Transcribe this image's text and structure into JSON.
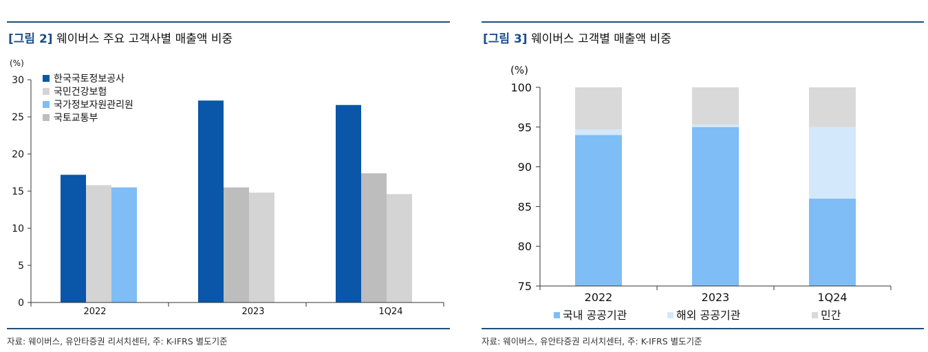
{
  "left": {
    "fig_label": "[그림 2]",
    "title": "웨이버스 주요 고객사별 매출액 비중",
    "source": "자료: 웨이버스, 유안타증권 리서치센터, 주: K-IFRS 별도기준",
    "chart_data": {
      "type": "bar",
      "title": "웨이버스 주요 고객사별 매출액 비중",
      "unit": "(%)",
      "categories": [
        "2022",
        "2023",
        "1Q24"
      ],
      "series": [
        {
          "name": "한국국토정보공사",
          "color": "#0a56a8",
          "values": [
            17.2,
            27.2,
            26.6
          ]
        },
        {
          "name": "국민건강보험",
          "color": "#d4d4d4",
          "values": [
            15.8,
            null,
            null
          ]
        },
        {
          "name": "국가정보자원관리원",
          "color": "#7ebdf5",
          "values": [
            15.5,
            null,
            null
          ]
        },
        {
          "name": "국토교통부",
          "color": "#bdbdbd",
          "values": [
            null,
            15.5,
            17.4
          ]
        }
      ],
      "extra_bars": [
        {
          "category": "2023",
          "color": "#d4d4d4",
          "value": 14.8
        },
        {
          "category": "1Q24",
          "color": "#d4d4d4",
          "value": 14.6
        }
      ],
      "ylim": [
        0,
        30
      ],
      "yticks": [
        0,
        5,
        10,
        15,
        20,
        25,
        30
      ],
      "legend_position": "top-left"
    }
  },
  "right": {
    "fig_label": "[그림 3]",
    "title": "웨이버스 고객별 매출액 비중",
    "source": "자료: 웨이버스, 유안타증권 리서치센터, 주: K-IFRS 별도기준",
    "chart_data": {
      "type": "bar",
      "stacked": true,
      "title": "웨이버스 고객별 매출액 비중",
      "unit": "(%)",
      "categories": [
        "2022",
        "2023",
        "1Q24"
      ],
      "series": [
        {
          "name": "국내 공공기관",
          "color": "#7ebdf5",
          "values": [
            94.0,
            95.0,
            86.0
          ]
        },
        {
          "name": "해외 공공기관",
          "color": "#d3e8fb",
          "values": [
            0.7,
            0.3,
            9.0
          ]
        },
        {
          "name": "민간",
          "color": "#d9d9d9",
          "values": [
            5.3,
            4.7,
            5.0
          ]
        }
      ],
      "ylim": [
        75,
        100
      ],
      "yticks": [
        75,
        80,
        85,
        90,
        95,
        100
      ],
      "legend_position": "bottom"
    }
  }
}
